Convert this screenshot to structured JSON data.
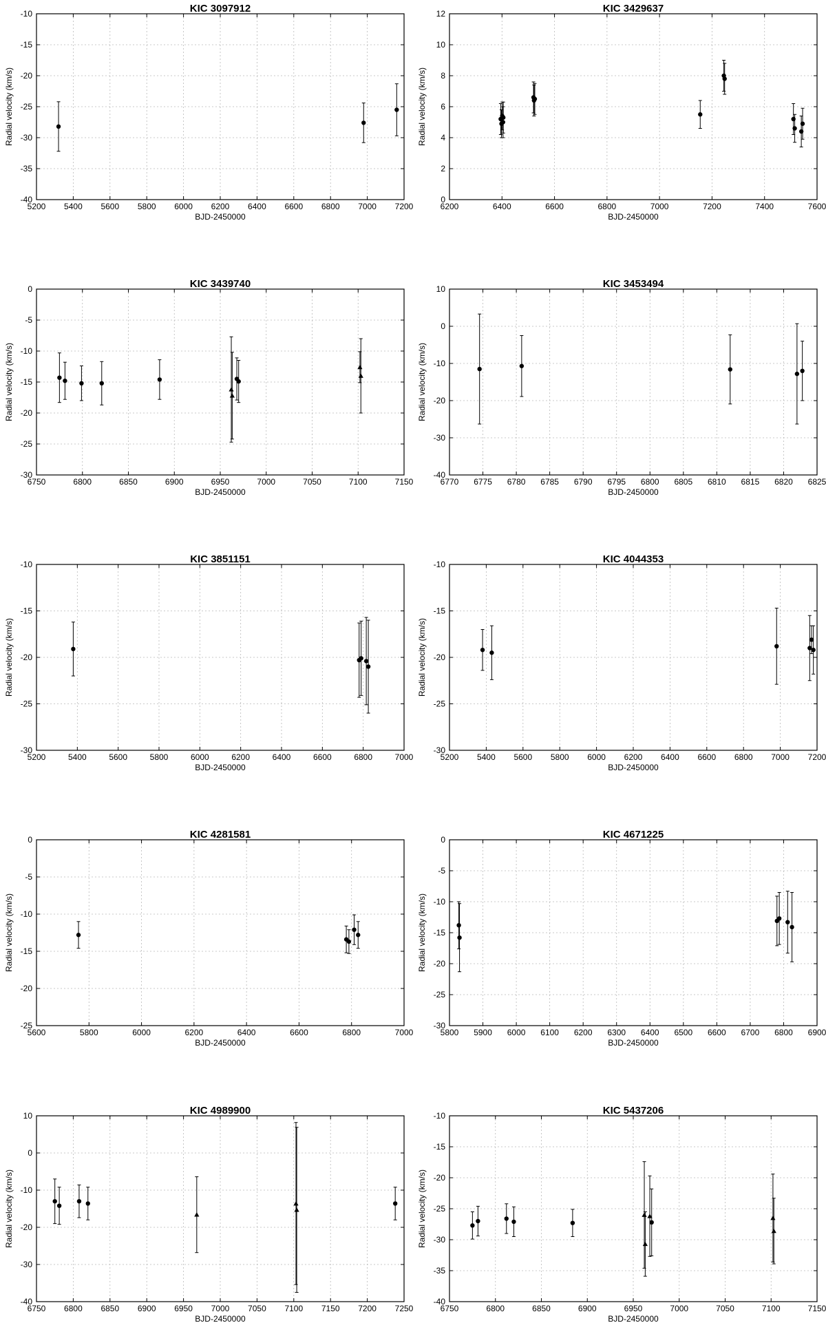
{
  "figure": {
    "xlabel": "BJD-2450000",
    "ylabel": "Radial velocity (km/s)",
    "colors": {
      "marker": "#000000",
      "grid": "#b8b8b8",
      "frame": "#000000",
      "background": "#ffffff"
    }
  },
  "chart_data": [
    {
      "type": "scatter",
      "title": "KIC 3097912",
      "xlabel": "BJD-2450000",
      "ylabel": "Radial velocity (km/s)",
      "xlim": [
        5200,
        7200
      ],
      "ylim": [
        -40,
        -10
      ],
      "xticks": [
        5200,
        5400,
        5600,
        5800,
        6000,
        6200,
        6400,
        6600,
        6800,
        7000,
        7200
      ],
      "yticks": [
        -10,
        -15,
        -20,
        -25,
        -30,
        -35,
        -40
      ],
      "grid": true,
      "points": [
        {
          "x": 5320,
          "y": -28.2,
          "err": 4.0,
          "marker": "circle"
        },
        {
          "x": 6980,
          "y": -27.6,
          "err": 3.2,
          "marker": "circle"
        },
        {
          "x": 7160,
          "y": -25.5,
          "err": 4.2,
          "marker": "circle"
        }
      ]
    },
    {
      "type": "scatter",
      "title": "KIC 3429637",
      "xlabel": "BJD-2450000",
      "ylabel": "Radial velocity (km/s)",
      "xlim": [
        6200,
        7600
      ],
      "ylim": [
        0,
        12
      ],
      "xticks": [
        6200,
        6400,
        6600,
        6800,
        7000,
        7200,
        7400,
        7600
      ],
      "yticks": [
        12,
        10,
        8,
        6,
        4,
        2,
        0
      ],
      "grid": true,
      "points": [
        {
          "x": 6395,
          "y": 5.2,
          "err": 1.0,
          "marker": "circle"
        },
        {
          "x": 6398,
          "y": 4.9,
          "err": 0.9,
          "marker": "circle"
        },
        {
          "x": 6401,
          "y": 5.4,
          "err": 0.9,
          "marker": "circle"
        },
        {
          "x": 6404,
          "y": 5.0,
          "err": 1.0,
          "marker": "circle"
        },
        {
          "x": 6405,
          "y": 5.3,
          "err": 1.0,
          "marker": "circle"
        },
        {
          "x": 6520,
          "y": 6.6,
          "err": 1.0,
          "marker": "circle"
        },
        {
          "x": 6522,
          "y": 6.4,
          "err": 1.0,
          "marker": "circle"
        },
        {
          "x": 6525,
          "y": 6.5,
          "err": 1.0,
          "marker": "circle"
        },
        {
          "x": 7155,
          "y": 5.5,
          "err": 0.9,
          "marker": "circle"
        },
        {
          "x": 7245,
          "y": 8.0,
          "err": 1.0,
          "marker": "circle"
        },
        {
          "x": 7248,
          "y": 7.8,
          "err": 1.0,
          "marker": "circle"
        },
        {
          "x": 7510,
          "y": 5.2,
          "err": 1.0,
          "marker": "circle"
        },
        {
          "x": 7515,
          "y": 4.6,
          "err": 0.9,
          "marker": "circle"
        },
        {
          "x": 7540,
          "y": 4.4,
          "err": 1.0,
          "marker": "circle"
        },
        {
          "x": 7545,
          "y": 4.9,
          "err": 1.0,
          "marker": "circle"
        }
      ]
    },
    {
      "type": "scatter",
      "title": "KIC 3439740",
      "xlabel": "BJD-2450000",
      "ylabel": "Radial velocity (km/s)",
      "xlim": [
        6750,
        7150
      ],
      "ylim": [
        -30,
        0
      ],
      "xticks": [
        6750,
        6800,
        6850,
        6900,
        6950,
        7000,
        7050,
        7100,
        7150
      ],
      "yticks": [
        0,
        -5,
        -10,
        -15,
        -20,
        -25,
        -30
      ],
      "grid": true,
      "points": [
        {
          "x": 6775,
          "y": -14.3,
          "err": 4.0,
          "marker": "circle"
        },
        {
          "x": 6781,
          "y": -14.8,
          "err": 3.0,
          "marker": "circle"
        },
        {
          "x": 6799,
          "y": -15.2,
          "err": 2.8,
          "marker": "circle"
        },
        {
          "x": 6821,
          "y": -15.2,
          "err": 3.5,
          "marker": "circle"
        },
        {
          "x": 6884,
          "y": -14.6,
          "err": 3.2,
          "marker": "circle"
        },
        {
          "x": 6962,
          "y": -16.2,
          "err": 8.5,
          "marker": "triangle"
        },
        {
          "x": 6963,
          "y": -17.2,
          "err": 7.0,
          "marker": "triangle"
        },
        {
          "x": 6968,
          "y": -14.5,
          "err": 3.4,
          "marker": "circle"
        },
        {
          "x": 6970,
          "y": -14.9,
          "err": 3.4,
          "marker": "circle"
        },
        {
          "x": 7102,
          "y": -12.6,
          "err": 2.5,
          "marker": "triangle"
        },
        {
          "x": 7103,
          "y": -14.0,
          "err": 6.0,
          "marker": "triangle"
        }
      ]
    },
    {
      "type": "scatter",
      "title": "KIC 3453494",
      "xlabel": "BJD-2450000",
      "ylabel": "Radial velocity (km/s)",
      "xlim": [
        6770,
        6825
      ],
      "ylim": [
        -40,
        10
      ],
      "xticks": [
        6770,
        6775,
        6780,
        6785,
        6790,
        6795,
        6800,
        6805,
        6810,
        6815,
        6820,
        6825
      ],
      "yticks": [
        10,
        0,
        -10,
        -20,
        -30,
        -40
      ],
      "grid": true,
      "points": [
        {
          "x": 6774.5,
          "y": -11.5,
          "err": 14.8,
          "marker": "circle"
        },
        {
          "x": 6780.8,
          "y": -10.7,
          "err": 8.2,
          "marker": "circle"
        },
        {
          "x": 6812,
          "y": -11.6,
          "err": 9.3,
          "marker": "circle"
        },
        {
          "x": 6822,
          "y": -12.8,
          "err": 13.5,
          "marker": "circle"
        },
        {
          "x": 6822.8,
          "y": -12.0,
          "err": 8.0,
          "marker": "circle"
        }
      ]
    },
    {
      "type": "scatter",
      "title": "KIC 3851151",
      "xlabel": "BJD-2450000",
      "ylabel": "Radial velocity (km/s)",
      "xlim": [
        5200,
        7000
      ],
      "ylim": [
        -30,
        -10
      ],
      "xticks": [
        5200,
        5400,
        5600,
        5800,
        6000,
        6200,
        6400,
        6600,
        6800,
        7000
      ],
      "yticks": [
        -10,
        -15,
        -20,
        -25,
        -30
      ],
      "grid": true,
      "points": [
        {
          "x": 5380,
          "y": -19.1,
          "err": 2.9,
          "marker": "circle"
        },
        {
          "x": 6780,
          "y": -20.3,
          "err": 4.0,
          "marker": "circle"
        },
        {
          "x": 6790,
          "y": -20.1,
          "err": 4.0,
          "marker": "circle"
        },
        {
          "x": 6815,
          "y": -20.4,
          "err": 4.7,
          "marker": "circle"
        },
        {
          "x": 6825,
          "y": -21.0,
          "err": 5.0,
          "marker": "circle"
        }
      ]
    },
    {
      "type": "scatter",
      "title": "KIC 4044353",
      "xlabel": "BJD-2450000",
      "ylabel": "Radial velocity (km/s)",
      "xlim": [
        5200,
        7200
      ],
      "ylim": [
        -30,
        -10
      ],
      "xticks": [
        5200,
        5400,
        5600,
        5800,
        6000,
        6200,
        6400,
        6600,
        6800,
        7000,
        7200
      ],
      "yticks": [
        -10,
        -15,
        -20,
        -25,
        -30
      ],
      "grid": true,
      "points": [
        {
          "x": 5380,
          "y": -19.2,
          "err": 2.2,
          "marker": "circle"
        },
        {
          "x": 5430,
          "y": -19.5,
          "err": 2.9,
          "marker": "circle"
        },
        {
          "x": 6980,
          "y": -18.8,
          "err": 4.1,
          "marker": "circle"
        },
        {
          "x": 7160,
          "y": -19.0,
          "err": 3.5,
          "marker": "circle"
        },
        {
          "x": 7170,
          "y": -18.1,
          "err": 1.5,
          "marker": "circle"
        },
        {
          "x": 7180,
          "y": -19.2,
          "err": 2.6,
          "marker": "circle"
        }
      ]
    },
    {
      "type": "scatter",
      "title": "KIC 4281581",
      "xlabel": "BJD-2450000",
      "ylabel": "Radial velocity (km/s)",
      "xlim": [
        5600,
        7000
      ],
      "ylim": [
        -25,
        0
      ],
      "xticks": [
        5600,
        5800,
        6000,
        6200,
        6400,
        6600,
        6800,
        7000
      ],
      "yticks": [
        0,
        -5,
        -10,
        -15,
        -20,
        -25
      ],
      "grid": true,
      "points": [
        {
          "x": 5760,
          "y": -12.8,
          "err": 1.8,
          "marker": "circle"
        },
        {
          "x": 6780,
          "y": -13.4,
          "err": 1.8,
          "marker": "circle"
        },
        {
          "x": 6790,
          "y": -13.7,
          "err": 1.6,
          "marker": "circle"
        },
        {
          "x": 6810,
          "y": -12.1,
          "err": 2.0,
          "marker": "circle"
        },
        {
          "x": 6825,
          "y": -12.8,
          "err": 1.8,
          "marker": "circle"
        }
      ]
    },
    {
      "type": "scatter",
      "title": "KIC 4671225",
      "xlabel": "BJD-2450000",
      "ylabel": "Radial velocity (km/s)",
      "xlim": [
        5800,
        6900
      ],
      "ylim": [
        -30,
        0
      ],
      "xticks": [
        5800,
        5900,
        6000,
        6100,
        6200,
        6300,
        6400,
        6500,
        6600,
        6700,
        6800,
        6900
      ],
      "yticks": [
        0,
        -5,
        -10,
        -15,
        -20,
        -25,
        -30
      ],
      "grid": true,
      "points": [
        {
          "x": 5828,
          "y": -13.8,
          "err": 3.8,
          "marker": "circle"
        },
        {
          "x": 5830,
          "y": -15.8,
          "err": 5.5,
          "marker": "circle"
        },
        {
          "x": 6780,
          "y": -13.1,
          "err": 4.0,
          "marker": "circle"
        },
        {
          "x": 6787,
          "y": -12.7,
          "err": 4.2,
          "marker": "circle"
        },
        {
          "x": 6812,
          "y": -13.3,
          "err": 5.0,
          "marker": "circle"
        },
        {
          "x": 6825,
          "y": -14.1,
          "err": 5.6,
          "marker": "circle"
        }
      ]
    },
    {
      "type": "scatter",
      "title": "KIC 4989900",
      "xlabel": "BJD-2450000",
      "ylabel": "Radial velocity (km/s)",
      "xlim": [
        6750,
        7250
      ],
      "ylim": [
        -40,
        10
      ],
      "xticks": [
        6750,
        6800,
        6850,
        6900,
        6950,
        7000,
        7050,
        7100,
        7150,
        7200,
        7250
      ],
      "yticks": [
        10,
        0,
        -10,
        -20,
        -30,
        -40
      ],
      "grid": true,
      "points": [
        {
          "x": 6775,
          "y": -13.0,
          "err": 6.0,
          "marker": "circle"
        },
        {
          "x": 6781,
          "y": -14.2,
          "err": 5.0,
          "marker": "circle"
        },
        {
          "x": 6808,
          "y": -13.0,
          "err": 4.4,
          "marker": "circle"
        },
        {
          "x": 6820,
          "y": -13.6,
          "err": 4.4,
          "marker": "circle"
        },
        {
          "x": 6968,
          "y": -16.6,
          "err": 10.2,
          "marker": "triangle"
        },
        {
          "x": 7103,
          "y": -13.6,
          "err": 21.8,
          "marker": "triangle"
        },
        {
          "x": 7104,
          "y": -15.3,
          "err": 22.2,
          "marker": "triangle"
        },
        {
          "x": 7238,
          "y": -13.6,
          "err": 4.4,
          "marker": "circle"
        }
      ]
    },
    {
      "type": "scatter",
      "title": "KIC 5437206",
      "xlabel": "BJD-2450000",
      "ylabel": "Radial velocity (km/s)",
      "xlim": [
        6750,
        7150
      ],
      "ylim": [
        -40,
        -10
      ],
      "xticks": [
        6750,
        6800,
        6850,
        6900,
        6950,
        7000,
        7050,
        7100,
        7150
      ],
      "yticks": [
        -10,
        -15,
        -20,
        -25,
        -30,
        -35,
        -40
      ],
      "grid": true,
      "points": [
        {
          "x": 6775,
          "y": -27.7,
          "err": 2.2,
          "marker": "circle"
        },
        {
          "x": 6781,
          "y": -27.0,
          "err": 2.4,
          "marker": "circle"
        },
        {
          "x": 6812,
          "y": -26.6,
          "err": 2.4,
          "marker": "circle"
        },
        {
          "x": 6820,
          "y": -27.1,
          "err": 2.4,
          "marker": "circle"
        },
        {
          "x": 6884,
          "y": -27.3,
          "err": 2.2,
          "marker": "circle"
        },
        {
          "x": 6962,
          "y": -26.0,
          "err": 8.6,
          "marker": "triangle"
        },
        {
          "x": 6963,
          "y": -30.7,
          "err": 5.2,
          "marker": "triangle"
        },
        {
          "x": 6968,
          "y": -26.2,
          "err": 6.5,
          "marker": "triangle"
        },
        {
          "x": 6970,
          "y": -27.2,
          "err": 5.4,
          "marker": "circle"
        },
        {
          "x": 7102,
          "y": -26.5,
          "err": 7.1,
          "marker": "triangle"
        },
        {
          "x": 7103,
          "y": -28.6,
          "err": 5.3,
          "marker": "triangle"
        }
      ]
    }
  ]
}
